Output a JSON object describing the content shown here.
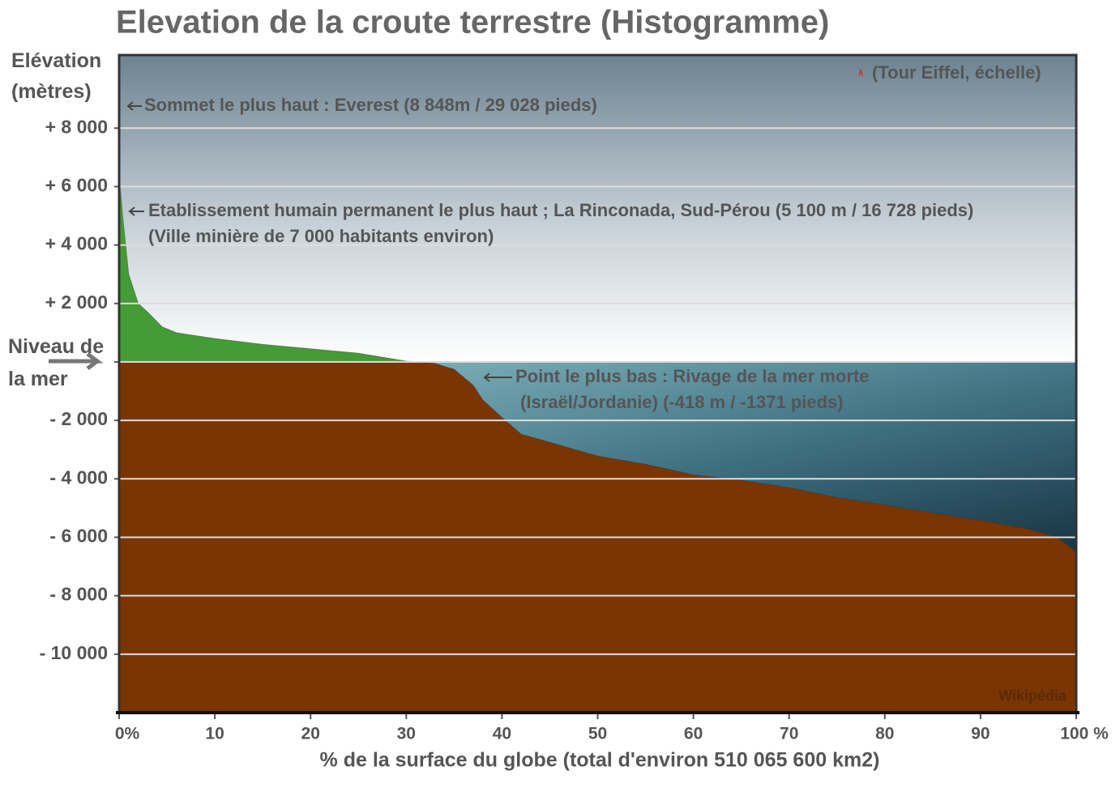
{
  "chart_data": {
    "type": "area",
    "title": "Elevation de la croute terrestre (Histogramme)",
    "y_label": "Elévation (mètres)",
    "x_label": "% de la surface du globe (total d'environ 510 065 600 km2)",
    "x": [
      0,
      0.1,
      0.4,
      1,
      2,
      3,
      4.5,
      6,
      10,
      15,
      20,
      25,
      30,
      33,
      35,
      37,
      38,
      40,
      42,
      45,
      50,
      55,
      60,
      65,
      70,
      75,
      80,
      85,
      90,
      95,
      98,
      100
    ],
    "values": [
      8848,
      6000,
      4900,
      3000,
      2000,
      1700,
      1200,
      1000,
      800,
      600,
      450,
      300,
      30,
      -50,
      -250,
      -800,
      -1300,
      -1900,
      -2470,
      -2750,
      -3220,
      -3500,
      -3860,
      -4050,
      -4300,
      -4640,
      -4890,
      -5170,
      -5420,
      -5720,
      -6000,
      -6500
    ],
    "color": "#7b3500",
    "land_color": "#2e8b2a",
    "xlim": [
      0,
      100
    ],
    "ylim": [
      -12000,
      10500
    ],
    "xticks": [
      {
        "value": 0,
        "label": "0%"
      },
      10,
      20,
      30,
      40,
      50,
      60,
      70,
      80,
      90,
      {
        "value": 100,
        "label": "100 %"
      }
    ],
    "yticks": [
      {
        "value": 8000,
        "label": "+ 8 000"
      },
      {
        "value": 6000,
        "label": "+ 6 000"
      },
      {
        "value": 4000,
        "label": "+ 4 000"
      },
      {
        "value": 2000,
        "label": "+ 2 000"
      },
      {
        "value": 0,
        "label": "Niveau de la mer"
      },
      {
        "value": -2000,
        "label": "- 2 000"
      },
      {
        "value": -4000,
        "label": "- 4 000"
      },
      {
        "value": -6000,
        "label": "- 6 000"
      },
      {
        "value": -8000,
        "label": "- 8 000"
      },
      {
        "value": -10000,
        "label": "- 10 000"
      }
    ],
    "grid": true,
    "annotations": [
      "Sommet le plus haut : Everest (8 848m / 29 028 pieds)",
      "Etablissement humain permanent le plus haut ; La Rinconada, Sud-Pérou  (5 100 m / 16 728 pieds)",
      "(Ville minière de 7 000 habitants environ)",
      "Point le plus bas : Rivage de la mer morte",
      "(Israël/Jordanie)  (-418 m / -1371 pieds)",
      "(Tour Eiffel, échelle)",
      "Wikipédia"
    ]
  }
}
